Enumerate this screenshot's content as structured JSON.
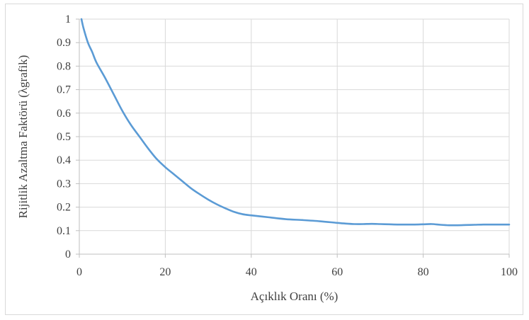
{
  "chart_data": {
    "type": "line",
    "title": "",
    "xlabel": "Açıklık Oranı (%)",
    "ylabel": "Rijitlik Azaltma Faktörü (λgrafik)",
    "xlim": [
      0,
      100
    ],
    "ylim": [
      0,
      1
    ],
    "x_ticks": [
      0,
      20,
      40,
      60,
      80,
      100
    ],
    "x_tick_labels": [
      "0",
      "20",
      "40",
      "60",
      "80",
      "100"
    ],
    "y_ticks": [
      0,
      0.1,
      0.2,
      0.3,
      0.4,
      0.5,
      0.6,
      0.7,
      0.8,
      0.9,
      1
    ],
    "y_tick_labels": [
      "0",
      "0.1",
      "0.2",
      "0.3",
      "0.4",
      "0.5",
      "0.6",
      "0.7",
      "0.8",
      "0.9",
      "1"
    ],
    "grid": true,
    "legend": "none",
    "series": [
      {
        "color": "#5b9bd5",
        "x": [
          0.5,
          1,
          2,
          3,
          4,
          6,
          8,
          10,
          12,
          14,
          16,
          18,
          20,
          22,
          24,
          26,
          28,
          30,
          32,
          34,
          36,
          38,
          40,
          44,
          48,
          52,
          56,
          60,
          62,
          64,
          66,
          68,
          70,
          72,
          74,
          76,
          78,
          80,
          82,
          84,
          86,
          88,
          90,
          92,
          94,
          96,
          98,
          100
        ],
        "y": [
          1.0,
          0.96,
          0.9,
          0.86,
          0.815,
          0.75,
          0.68,
          0.61,
          0.55,
          0.5,
          0.45,
          0.405,
          0.37,
          0.34,
          0.31,
          0.28,
          0.255,
          0.232,
          0.212,
          0.195,
          0.18,
          0.17,
          0.165,
          0.157,
          0.149,
          0.145,
          0.14,
          0.133,
          0.13,
          0.128,
          0.128,
          0.129,
          0.128,
          0.127,
          0.126,
          0.126,
          0.126,
          0.127,
          0.128,
          0.125,
          0.123,
          0.123,
          0.124,
          0.125,
          0.126,
          0.126,
          0.126,
          0.126
        ]
      }
    ]
  }
}
